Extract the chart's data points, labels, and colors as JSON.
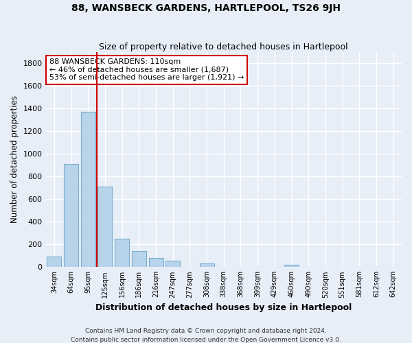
{
  "title": "88, WANSBECK GARDENS, HARTLEPOOL, TS26 9JH",
  "subtitle": "Size of property relative to detached houses in Hartlepool",
  "xlabel": "Distribution of detached houses by size in Hartlepool",
  "ylabel": "Number of detached properties",
  "bar_labels": [
    "34sqm",
    "64sqm",
    "95sqm",
    "125sqm",
    "156sqm",
    "186sqm",
    "216sqm",
    "247sqm",
    "277sqm",
    "308sqm",
    "338sqm",
    "368sqm",
    "399sqm",
    "429sqm",
    "460sqm",
    "490sqm",
    "520sqm",
    "551sqm",
    "581sqm",
    "612sqm",
    "642sqm"
  ],
  "bar_values": [
    90,
    910,
    1370,
    710,
    250,
    140,
    80,
    55,
    0,
    30,
    0,
    0,
    0,
    0,
    20,
    0,
    0,
    0,
    0,
    0,
    0
  ],
  "bar_color": "#b8d4ea",
  "bar_edge_color": "#7aaed0",
  "vline_color": "#cc0000",
  "annotation_line1": "88 WANSBECK GARDENS: 110sqm",
  "annotation_line2": "← 46% of detached houses are smaller (1,687)",
  "annotation_line3": "53% of semi-detached houses are larger (1,921) →",
  "annotation_box_color": "#ffffff",
  "annotation_box_edge": "#cc0000",
  "ylim": [
    0,
    1900
  ],
  "yticks": [
    0,
    200,
    400,
    600,
    800,
    1000,
    1200,
    1400,
    1600,
    1800
  ],
  "footer_line1": "Contains HM Land Registry data © Crown copyright and database right 2024.",
  "footer_line2": "Contains public sector information licensed under the Open Government Licence v3.0.",
  "background_color": "#e8eef8",
  "grid_color": "#ffffff",
  "title_fontsize": 10,
  "subtitle_fontsize": 9
}
